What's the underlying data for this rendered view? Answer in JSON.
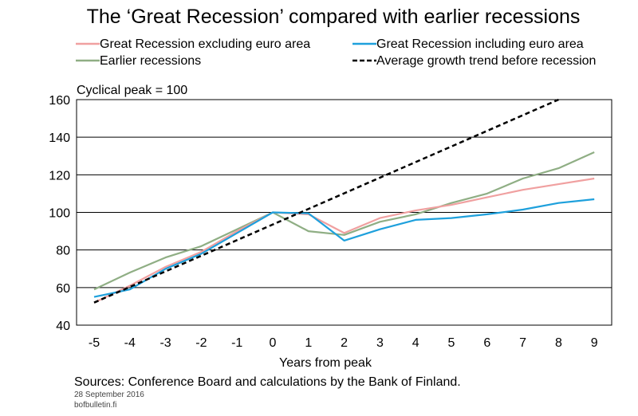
{
  "chart_data": {
    "type": "line",
    "title": "The ‘Great Recession’ compared with earlier recessions",
    "unit_note": "Cyclical peak  = 100",
    "xlabel": "Years from peak",
    "ylabel": "",
    "x": [
      -5,
      -4,
      -3,
      -2,
      -1,
      0,
      1,
      2,
      3,
      4,
      5,
      6,
      7,
      8,
      9
    ],
    "xlim": [
      -5,
      9
    ],
    "ylim": [
      40,
      160
    ],
    "yticks": [
      40,
      60,
      80,
      100,
      120,
      140,
      160
    ],
    "grid": true,
    "legend_position": "top",
    "series": [
      {
        "name": "Great Recession excluding euro area",
        "color": "#f0a0a0",
        "style": "solid",
        "values": [
          52,
          61,
          71,
          79,
          90,
          100,
          99,
          89,
          97,
          101,
          104,
          108,
          112,
          115,
          118
        ]
      },
      {
        "name": "Great Recession including euro area",
        "color": "#1ea0dc",
        "style": "solid",
        "values": [
          55,
          59,
          70,
          78,
          89,
          100,
          99.5,
          85,
          91,
          96,
          97,
          99,
          101.5,
          105,
          107
        ]
      },
      {
        "name": "Earlier recessions",
        "color": "#8fae84",
        "style": "solid",
        "values": [
          59,
          68,
          76,
          82,
          91,
          100,
          90,
          88,
          95,
          99,
          105,
          110,
          118,
          123.5,
          132
        ]
      },
      {
        "name": "Average growth trend before recession",
        "color": "#000000",
        "style": "dashed",
        "x": [
          -5,
          8
        ],
        "values": [
          52,
          160
        ]
      }
    ]
  },
  "footer": {
    "source": "Sources: Conference Board and calculations by the Bank of Finland.",
    "date": "28 September 2016",
    "site": "bofbulletin.fi"
  }
}
